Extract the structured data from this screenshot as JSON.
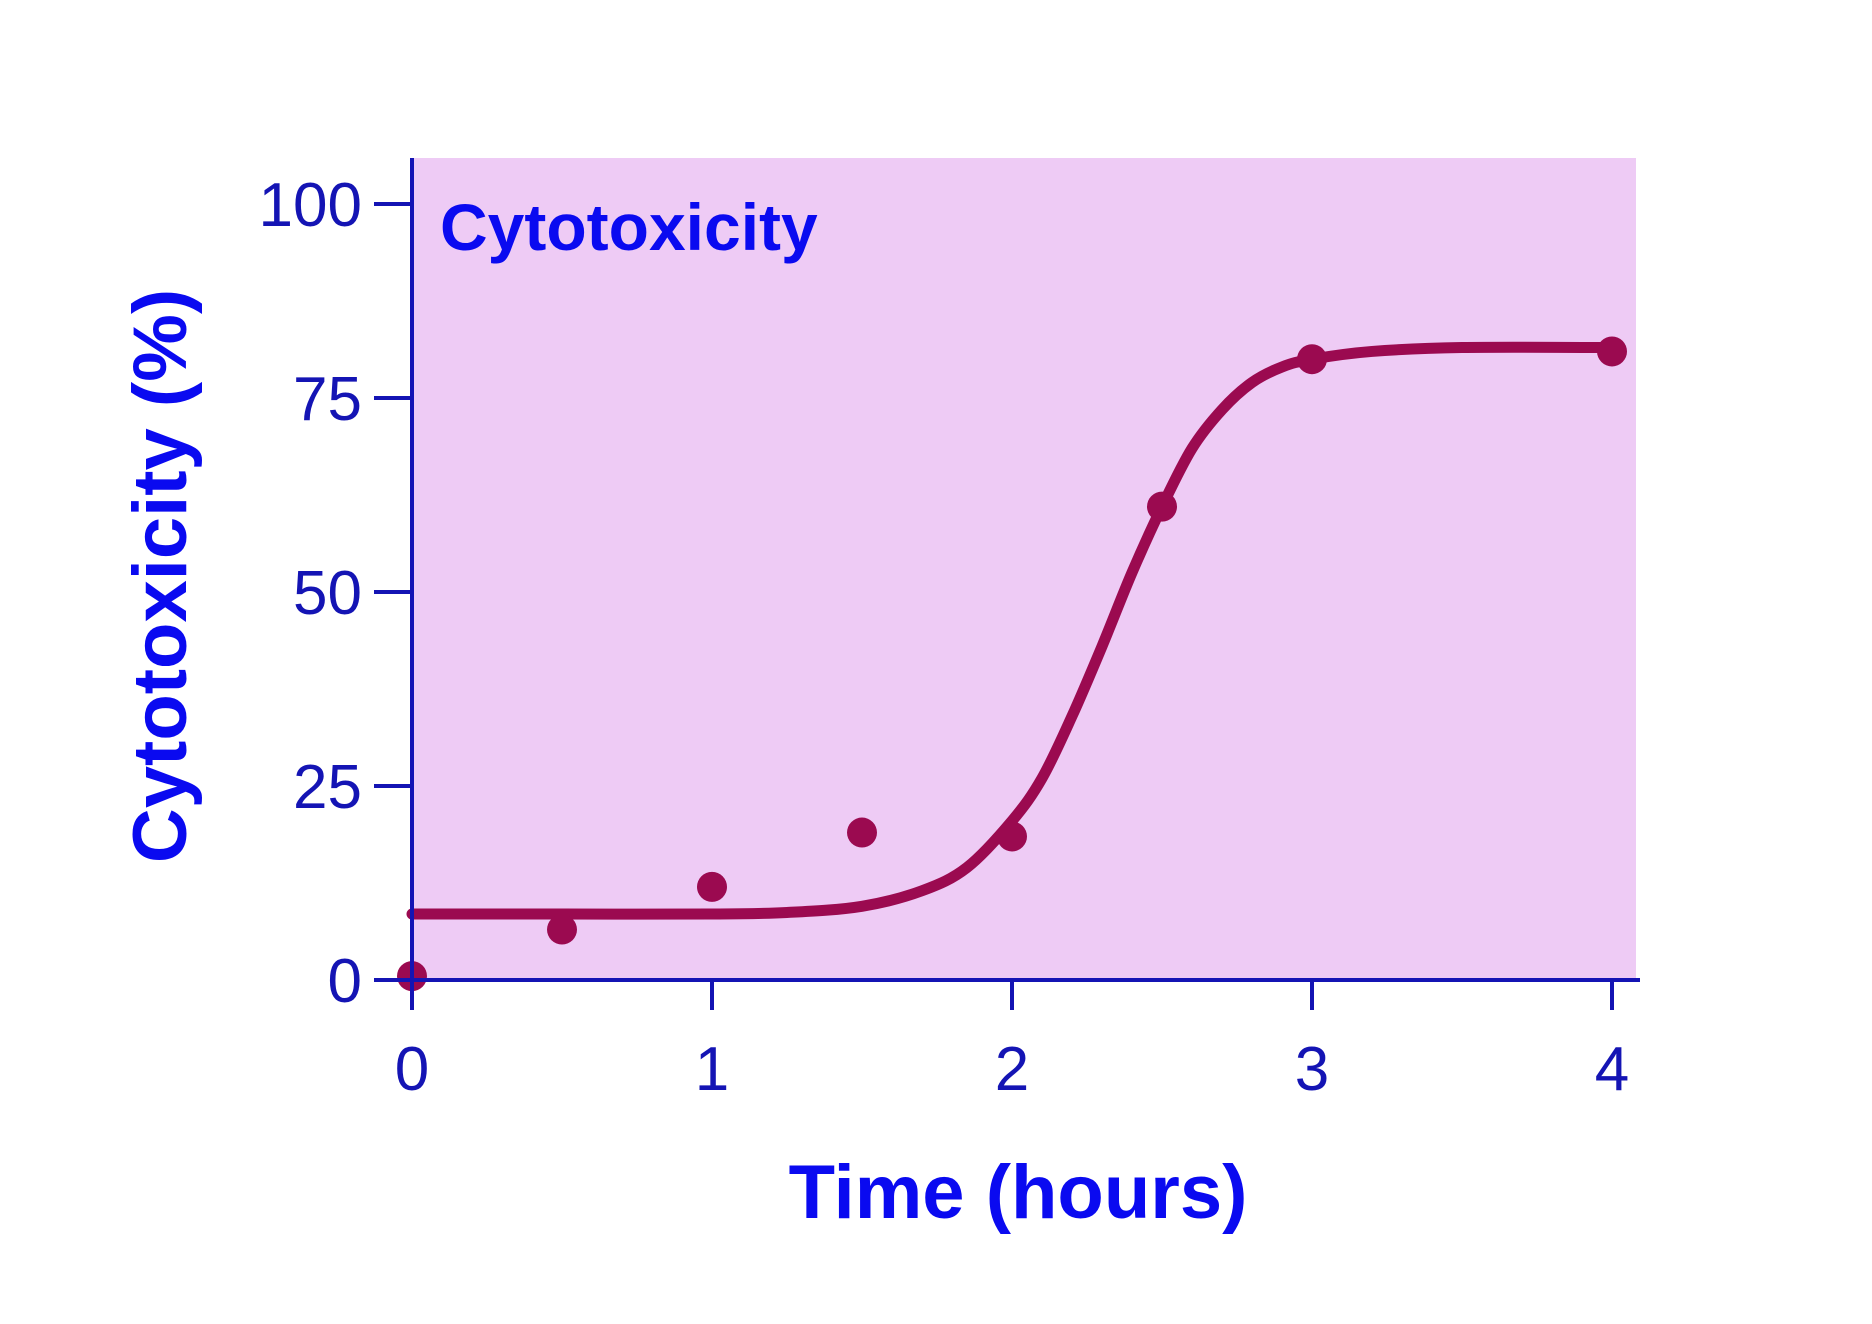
{
  "colors": {
    "plot_background": "#eecbf5",
    "axis": "#1414b4",
    "tick_label": "#1414b4",
    "axis_title": "#0a0af0",
    "series": "#9b0a50"
  },
  "chart_data": {
    "type": "scatter",
    "title": "Cytotoxicity",
    "xlabel": "Time (hours)",
    "ylabel": "Cytotoxicity (%)",
    "xlim": [
      0,
      4
    ],
    "ylim": [
      0,
      100
    ],
    "xticks": [
      0,
      1,
      2,
      3,
      4
    ],
    "yticks": [
      0,
      25,
      50,
      75,
      100
    ],
    "grid": false,
    "legend": "none",
    "points": [
      {
        "x": 0,
        "y": 0.5
      },
      {
        "x": 0.5,
        "y": 6.5
      },
      {
        "x": 1,
        "y": 12
      },
      {
        "x": 1.5,
        "y": 19
      },
      {
        "x": 2,
        "y": 18.5
      },
      {
        "x": 2.5,
        "y": 61
      },
      {
        "x": 3,
        "y": 80
      },
      {
        "x": 4,
        "y": 81
      }
    ],
    "fit_curve": {
      "type": "sigmoid",
      "x": [
        0,
        0.5,
        1.0,
        1.25,
        1.5,
        1.7,
        1.85,
        2.0,
        2.1,
        2.2,
        2.3,
        2.4,
        2.5,
        2.6,
        2.7,
        2.8,
        2.9,
        3.0,
        3.2,
        3.5,
        4.0
      ],
      "y": [
        8.5,
        8.5,
        8.5,
        8.7,
        9.5,
        11.5,
        14.5,
        20.5,
        26,
        34,
        43,
        52.5,
        61,
        68.5,
        73.5,
        77,
        79,
        80,
        81,
        81.5,
        81.5
      ]
    }
  }
}
